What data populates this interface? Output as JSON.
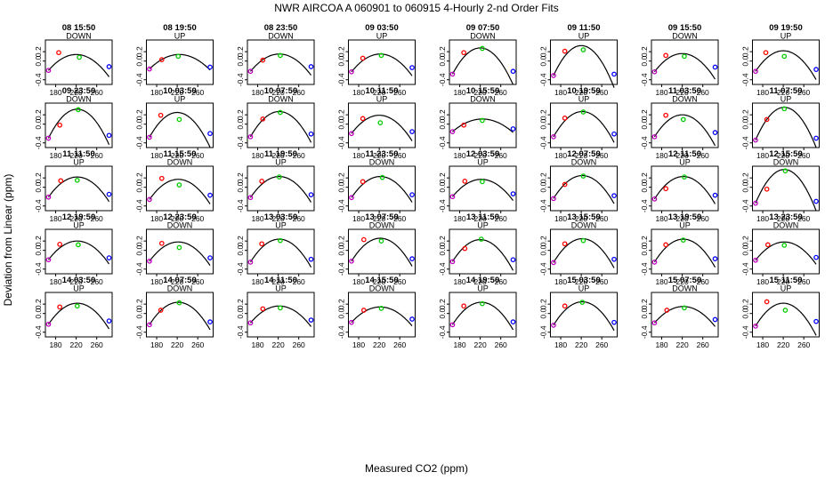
{
  "chart_data": {
    "type": "scatter",
    "title": "NWR   AIRCOA A    060901 to 060915   4-Hourly 2-nd Order Fits",
    "xlabel": "Measured CO2 (ppm)",
    "ylabel": "Deviation from Linear (ppm)",
    "xlim": [
      160,
      290
    ],
    "ylim": [
      -0.5,
      0.45
    ],
    "x_ticks": [
      180,
      220,
      260
    ],
    "y_ticks": [
      -0.4,
      0.0,
      0.2
    ],
    "series_colors": {
      "cal_low": "#c000c0",
      "cal_mid1": "#ff0000",
      "cal_mid2": "#00cc00",
      "cal_high": "#0000ff",
      "fit": "#000000"
    },
    "panels": [
      {
        "title": "08 15:50",
        "direction": "DOWN",
        "peak_x": 220,
        "peak_y": 0.14,
        "points": [
          [
            166,
            -0.2
          ],
          [
            186,
            0.18
          ],
          [
            226,
            0.08
          ],
          [
            284,
            -0.12
          ]
        ]
      },
      {
        "title": "08 19:50",
        "direction": "UP",
        "peak_x": 224,
        "peak_y": 0.14,
        "points": [
          [
            166,
            -0.17
          ],
          [
            190,
            0.03
          ],
          [
            222,
            0.1
          ],
          [
            284,
            -0.13
          ]
        ]
      },
      {
        "title": "08 23:50",
        "direction": "DOWN",
        "peak_x": 222,
        "peak_y": 0.15,
        "points": [
          [
            166,
            -0.22
          ],
          [
            190,
            0.02
          ],
          [
            224,
            0.12
          ],
          [
            284,
            -0.12
          ]
        ]
      },
      {
        "title": "09 03:50",
        "direction": "UP",
        "peak_x": 222,
        "peak_y": 0.15,
        "points": [
          [
            166,
            -0.23
          ],
          [
            188,
            0.06
          ],
          [
            224,
            0.12
          ],
          [
            284,
            -0.14
          ]
        ]
      },
      {
        "title": "09 07:50",
        "direction": "DOWN",
        "peak_x": 220,
        "peak_y": 0.28,
        "points": [
          [
            166,
            -0.28
          ],
          [
            188,
            0.18
          ],
          [
            224,
            0.27
          ],
          [
            284,
            -0.22
          ]
        ]
      },
      {
        "title": "09 11:50",
        "direction": "UP",
        "peak_x": 220,
        "peak_y": 0.33,
        "points": [
          [
            166,
            -0.31
          ],
          [
            188,
            0.21
          ],
          [
            224,
            0.24
          ],
          [
            284,
            -0.28
          ]
        ]
      },
      {
        "title": "09 15:50",
        "direction": "DOWN",
        "peak_x": 220,
        "peak_y": 0.16,
        "points": [
          [
            166,
            -0.23
          ],
          [
            188,
            0.12
          ],
          [
            224,
            0.1
          ],
          [
            284,
            -0.13
          ]
        ]
      },
      {
        "title": "09 19:50",
        "direction": "UP",
        "peak_x": 220,
        "peak_y": 0.22,
        "points": [
          [
            166,
            -0.22
          ],
          [
            186,
            0.18
          ],
          [
            222,
            0.1
          ],
          [
            284,
            -0.18
          ]
        ]
      },
      {
        "title": "09 23:50",
        "direction": "DOWN",
        "peak_x": 222,
        "peak_y": 0.32,
        "points": [
          [
            166,
            -0.3
          ],
          [
            188,
            -0.02
          ],
          [
            224,
            0.31
          ],
          [
            284,
            -0.24
          ]
        ]
      },
      {
        "title": "10 03:50",
        "direction": "UP",
        "peak_x": 220,
        "peak_y": 0.25,
        "points": [
          [
            166,
            -0.28
          ],
          [
            188,
            0.19
          ],
          [
            224,
            0.1
          ],
          [
            284,
            -0.2
          ]
        ]
      },
      {
        "title": "10 07:50",
        "direction": "DOWN",
        "peak_x": 222,
        "peak_y": 0.27,
        "points": [
          [
            166,
            -0.27
          ],
          [
            190,
            0.11
          ],
          [
            224,
            0.25
          ],
          [
            284,
            -0.21
          ]
        ]
      },
      {
        "title": "10 11:50",
        "direction": "UP",
        "peak_x": 220,
        "peak_y": 0.19,
        "points": [
          [
            166,
            -0.2
          ],
          [
            188,
            0.12
          ],
          [
            222,
            0.03
          ],
          [
            284,
            -0.16
          ]
        ]
      },
      {
        "title": "10 15:50",
        "direction": "DOWN",
        "peak_x": 224,
        "peak_y": 0.11,
        "points": [
          [
            166,
            -0.16
          ],
          [
            188,
            -0.02
          ],
          [
            224,
            0.08
          ],
          [
            284,
            -0.1
          ]
        ]
      },
      {
        "title": "10 19:50",
        "direction": "UP",
        "peak_x": 222,
        "peak_y": 0.27,
        "points": [
          [
            166,
            -0.27
          ],
          [
            188,
            0.13
          ],
          [
            224,
            0.26
          ],
          [
            284,
            -0.21
          ]
        ]
      },
      {
        "title": "11 03:50",
        "direction": "DOWN",
        "peak_x": 220,
        "peak_y": 0.2,
        "points": [
          [
            166,
            -0.27
          ],
          [
            188,
            0.19
          ],
          [
            222,
            0.1
          ],
          [
            284,
            -0.18
          ]
        ]
      },
      {
        "title": "11 07:50",
        "direction": "UP",
        "peak_x": 222,
        "peak_y": 0.36,
        "points": [
          [
            166,
            -0.34
          ],
          [
            188,
            0.1
          ],
          [
            222,
            0.33
          ],
          [
            284,
            -0.3
          ]
        ]
      },
      {
        "title": "11 11:50",
        "direction": "UP",
        "peak_x": 222,
        "peak_y": 0.22,
        "points": [
          [
            166,
            -0.21
          ],
          [
            190,
            0.14
          ],
          [
            222,
            0.15
          ],
          [
            284,
            -0.15
          ]
        ]
      },
      {
        "title": "11 15:50",
        "direction": "DOWN",
        "peak_x": 222,
        "peak_y": 0.17,
        "points": [
          [
            166,
            -0.26
          ],
          [
            190,
            0.19
          ],
          [
            224,
            0.05
          ],
          [
            284,
            -0.17
          ]
        ]
      },
      {
        "title": "11 19:50",
        "direction": "UP",
        "peak_x": 222,
        "peak_y": 0.23,
        "points": [
          [
            166,
            -0.22
          ],
          [
            188,
            0.13
          ],
          [
            222,
            0.22
          ],
          [
            284,
            -0.16
          ]
        ]
      },
      {
        "title": "11 23:50",
        "direction": "DOWN",
        "peak_x": 222,
        "peak_y": 0.23,
        "points": [
          [
            166,
            -0.22
          ],
          [
            188,
            0.12
          ],
          [
            226,
            0.21
          ],
          [
            284,
            -0.16
          ]
        ]
      },
      {
        "title": "12 03:50",
        "direction": "UP",
        "peak_x": 222,
        "peak_y": 0.17,
        "points": [
          [
            166,
            -0.2
          ],
          [
            190,
            0.13
          ],
          [
            224,
            0.12
          ],
          [
            284,
            -0.14
          ]
        ]
      },
      {
        "title": "12 07:50",
        "direction": "DOWN",
        "peak_x": 222,
        "peak_y": 0.25,
        "points": [
          [
            166,
            -0.24
          ],
          [
            188,
            0.06
          ],
          [
            224,
            0.24
          ],
          [
            284,
            -0.18
          ]
        ]
      },
      {
        "title": "12 11:50",
        "direction": "UP",
        "peak_x": 222,
        "peak_y": 0.23,
        "points": [
          [
            166,
            -0.25
          ],
          [
            188,
            -0.03
          ],
          [
            224,
            0.22
          ],
          [
            284,
            -0.17
          ]
        ]
      },
      {
        "title": "12 15:50",
        "direction": "DOWN",
        "peak_x": 222,
        "peak_y": 0.38,
        "points": [
          [
            166,
            -0.34
          ],
          [
            188,
            -0.04
          ],
          [
            224,
            0.35
          ],
          [
            284,
            -0.3
          ]
        ]
      },
      {
        "title": "12 19:50",
        "direction": "UP",
        "peak_x": 222,
        "peak_y": 0.2,
        "points": [
          [
            166,
            -0.2
          ],
          [
            188,
            0.13
          ],
          [
            224,
            0.12
          ],
          [
            284,
            -0.16
          ]
        ]
      },
      {
        "title": "12 23:50",
        "direction": "DOWN",
        "peak_x": 222,
        "peak_y": 0.18,
        "points": [
          [
            166,
            -0.23
          ],
          [
            190,
            0.15
          ],
          [
            224,
            0.06
          ],
          [
            284,
            -0.16
          ]
        ]
      },
      {
        "title": "13 03:50",
        "direction": "UP",
        "peak_x": 222,
        "peak_y": 0.24,
        "points": [
          [
            166,
            -0.25
          ],
          [
            188,
            0.14
          ],
          [
            224,
            0.21
          ],
          [
            284,
            -0.19
          ]
        ]
      },
      {
        "title": "13 07:50",
        "direction": "DOWN",
        "peak_x": 222,
        "peak_y": 0.26,
        "points": [
          [
            166,
            -0.23
          ],
          [
            190,
            0.23
          ],
          [
            224,
            0.2
          ],
          [
            284,
            -0.18
          ]
        ]
      },
      {
        "title": "13 11:50",
        "direction": "UP",
        "peak_x": 220,
        "peak_y": 0.23,
        "points": [
          [
            166,
            -0.24
          ],
          [
            190,
            0.04
          ],
          [
            222,
            0.24
          ],
          [
            284,
            -0.2
          ]
        ]
      },
      {
        "title": "13 15:50",
        "direction": "DOWN",
        "peak_x": 222,
        "peak_y": 0.25,
        "points": [
          [
            166,
            -0.26
          ],
          [
            188,
            0.14
          ],
          [
            224,
            0.21
          ],
          [
            284,
            -0.19
          ]
        ]
      },
      {
        "title": "13 19:50",
        "direction": "UP",
        "peak_x": 222,
        "peak_y": 0.24,
        "points": [
          [
            166,
            -0.25
          ],
          [
            188,
            0.12
          ],
          [
            222,
            0.22
          ],
          [
            284,
            -0.18
          ]
        ]
      },
      {
        "title": "13 23:50",
        "direction": "DOWN",
        "peak_x": 222,
        "peak_y": 0.18,
        "points": [
          [
            166,
            -0.21
          ],
          [
            190,
            0.12
          ],
          [
            222,
            0.11
          ],
          [
            284,
            -0.15
          ]
        ]
      },
      {
        "title": "14 03:50",
        "direction": "UP",
        "peak_x": 222,
        "peak_y": 0.22,
        "points": [
          [
            166,
            -0.23
          ],
          [
            188,
            0.14
          ],
          [
            222,
            0.16
          ],
          [
            284,
            -0.16
          ]
        ]
      },
      {
        "title": "14 07:50",
        "direction": "DOWN",
        "peak_x": 222,
        "peak_y": 0.24,
        "points": [
          [
            166,
            -0.24
          ],
          [
            188,
            0.07
          ],
          [
            224,
            0.23
          ],
          [
            284,
            -0.18
          ]
        ]
      },
      {
        "title": "14 11:50",
        "direction": "UP",
        "peak_x": 222,
        "peak_y": 0.16,
        "points": [
          [
            166,
            -0.2
          ],
          [
            190,
            0.1
          ],
          [
            224,
            0.12
          ],
          [
            284,
            -0.14
          ]
        ]
      },
      {
        "title": "14 15:50",
        "direction": "DOWN",
        "peak_x": 222,
        "peak_y": 0.14,
        "points": [
          [
            166,
            -0.19
          ],
          [
            190,
            0.07
          ],
          [
            224,
            0.11
          ],
          [
            284,
            -0.12
          ]
        ]
      },
      {
        "title": "14 19:50",
        "direction": "UP",
        "peak_x": 222,
        "peak_y": 0.24,
        "points": [
          [
            166,
            -0.24
          ],
          [
            188,
            0.16
          ],
          [
            224,
            0.21
          ],
          [
            284,
            -0.18
          ]
        ]
      },
      {
        "title": "15 03:50",
        "direction": "UP",
        "peak_x": 222,
        "peak_y": 0.25,
        "points": [
          [
            166,
            -0.25
          ],
          [
            188,
            0.16
          ],
          [
            222,
            0.24
          ],
          [
            284,
            -0.19
          ]
        ]
      },
      {
        "title": "15 07:50",
        "direction": "DOWN",
        "peak_x": 222,
        "peak_y": 0.15,
        "points": [
          [
            166,
            -0.2
          ],
          [
            190,
            0.07
          ],
          [
            224,
            0.12
          ],
          [
            284,
            -0.13
          ]
        ]
      },
      {
        "title": "15 11:50",
        "direction": "UP",
        "peak_x": 220,
        "peak_y": 0.22,
        "points": [
          [
            166,
            -0.27
          ],
          [
            188,
            0.25
          ],
          [
            224,
            0.07
          ],
          [
            284,
            -0.17
          ]
        ]
      }
    ]
  }
}
